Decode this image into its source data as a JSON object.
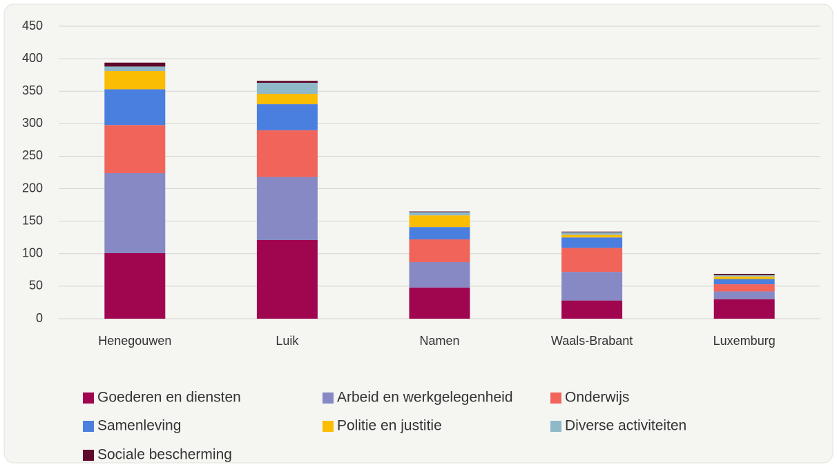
{
  "chart_data": {
    "type": "stacked_bar",
    "categories": [
      "Henegouwen",
      "Luik",
      "Namen",
      "Waals-Brabant",
      "Luxemburg"
    ],
    "series": [
      {
        "name": "Goederen en diensten",
        "color": "#a0064f",
        "values": [
          101,
          121,
          48,
          28,
          30
        ]
      },
      {
        "name": "Arbeid en werkgelegenheid",
        "color": "#8789c4",
        "values": [
          123,
          97,
          39,
          44,
          12
        ]
      },
      {
        "name": "Onderwijs",
        "color": "#f0645a",
        "values": [
          74,
          72,
          35,
          37,
          11
        ]
      },
      {
        "name": "Samenleving",
        "color": "#4a7fe0",
        "values": [
          55,
          40,
          19,
          16,
          8
        ]
      },
      {
        "name": "Politie en justitie",
        "color": "#fbbc04",
        "values": [
          28,
          16,
          18,
          4,
          4
        ]
      },
      {
        "name": "Diverse activiteiten",
        "color": "#8fb8c8",
        "values": [
          7,
          17,
          5,
          4,
          2
        ]
      },
      {
        "name": "Sociale bescherming",
        "color": "#5e0a2a",
        "values": [
          6,
          3,
          1,
          1,
          2
        ]
      }
    ],
    "ylim": [
      0,
      450
    ],
    "yticks": [
      0,
      50,
      100,
      150,
      200,
      250,
      300,
      350,
      400,
      450
    ],
    "grid": true
  }
}
